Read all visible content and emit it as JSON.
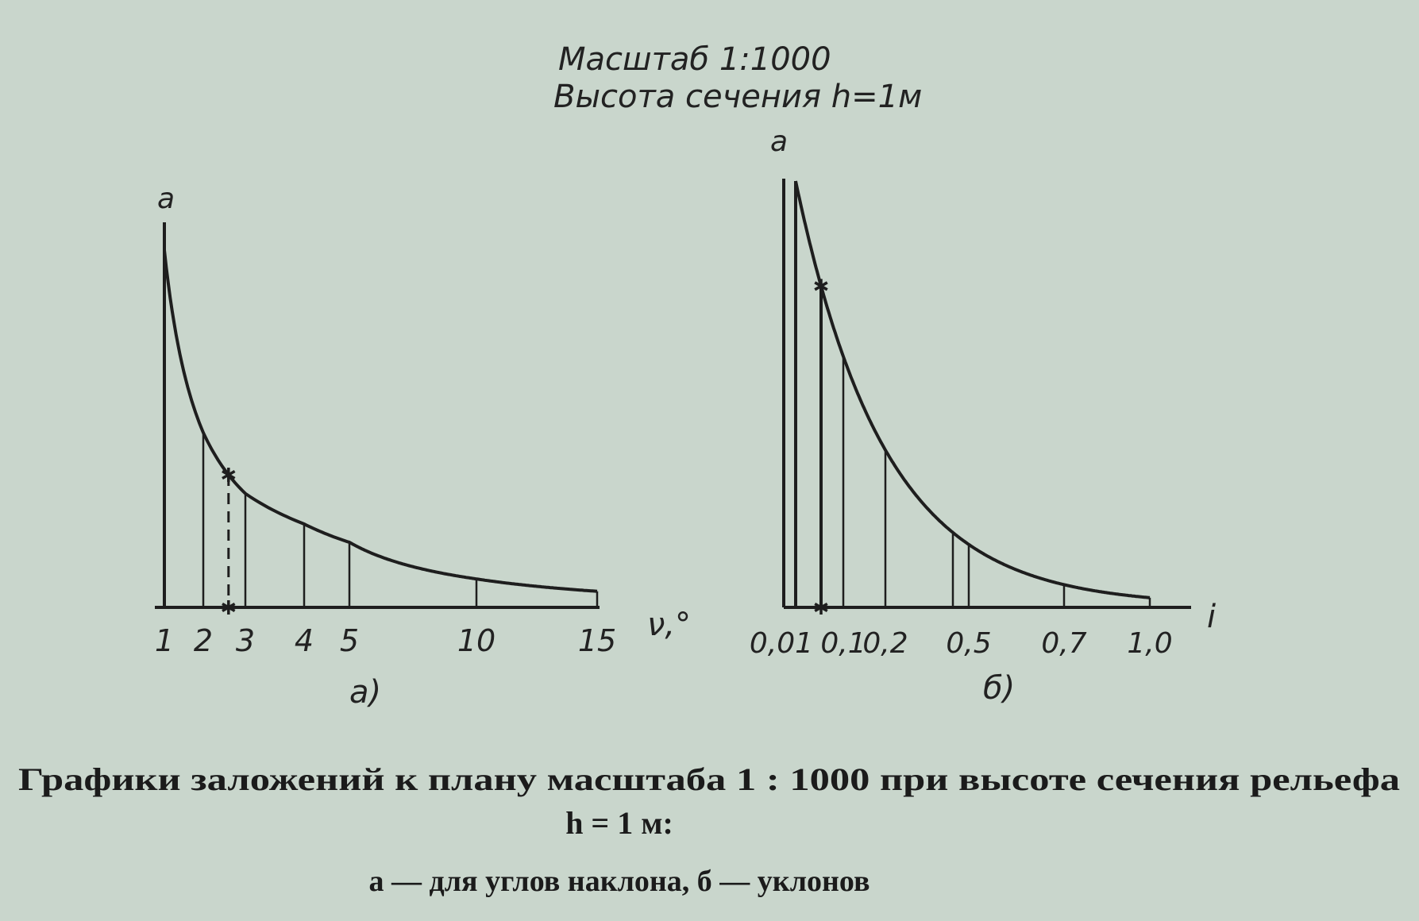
{
  "header": {
    "scale_label": "Масштаб 1:1000",
    "section_label": "Высота сечения h=1м"
  },
  "caption": {
    "line1": "Графики заложений к плану масштаба 1 : 1000 при высоте сечения рельефа",
    "line2": "h = 1 м:",
    "line3": "а — для углов наклона, б — уклонов"
  },
  "chart_data": [
    {
      "type": "line",
      "panel_label": "а)",
      "ylabel": "a",
      "xlabel": "ν,°",
      "x_ticks": [
        1,
        2,
        3,
        4,
        5,
        10,
        15
      ],
      "x_tick_labels": [
        "1",
        "2",
        "3",
        "4",
        "5",
        "10",
        "15"
      ],
      "x": [
        1,
        2,
        3,
        4,
        5,
        10,
        15
      ],
      "y": [
        57.3,
        28.6,
        19.1,
        14.3,
        11.4,
        5.7,
        3.7
      ],
      "marked_point": {
        "x": 2.6,
        "y": 22.0
      },
      "grid": false
    },
    {
      "type": "line",
      "panel_label": "б)",
      "ylabel": "a",
      "xlabel": "i",
      "x_ticks": [
        0.01,
        0.1,
        0.2,
        0.5,
        0.7,
        1.0
      ],
      "x_tick_labels": [
        "0,01",
        "0,1",
        "0,2",
        "0,5",
        "0,7",
        "1,0"
      ],
      "x": [
        0.01,
        0.1,
        0.2,
        0.3,
        0.5,
        0.7,
        1.0
      ],
      "y": [
        100,
        10,
        5,
        3.3,
        2,
        1.4,
        1
      ],
      "marked_point": {
        "x": 0.05,
        "y": 20
      },
      "grid": false
    }
  ]
}
